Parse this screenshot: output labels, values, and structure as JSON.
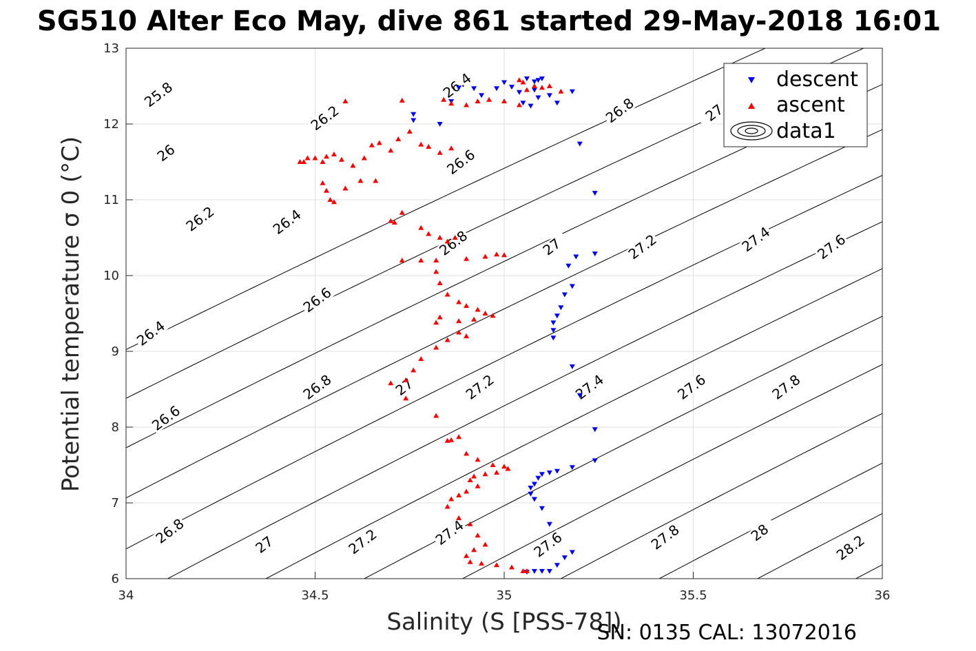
{
  "title": "SG510 Alter Eco May, dive 861 started 29-May-2018 16:01",
  "footer": "SN: 0135  CAL: 13072016",
  "chart_data": {
    "type": "scatter",
    "title": "SG510 Alter Eco May, dive 861 started 29-May-2018 16:01",
    "xlabel": "Salinity (S [PSS-78])",
    "ylabel": "Potential temperature σ 0 (°C)",
    "xlim": [
      34,
      36
    ],
    "ylim": [
      6,
      13
    ],
    "xticks": [
      "34",
      "34.5",
      "35",
      "35.5",
      "36"
    ],
    "yticks": [
      "6",
      "7",
      "8",
      "9",
      "10",
      "11",
      "12",
      "13"
    ],
    "grid": true,
    "legend_position": "top-right",
    "legend": [
      "descent",
      "ascent",
      "data1"
    ],
    "colors": {
      "descent": "#0000ff",
      "ascent": "#ff0000",
      "contour": "#000000"
    },
    "contour_levels": [
      25.8,
      26.0,
      26.2,
      26.4,
      26.6,
      26.8,
      27.0,
      27.2,
      27.4,
      27.6,
      27.8,
      28.0,
      28.2
    ],
    "contour_labels": [
      {
        "text": "25.8",
        "s": 34.09,
        "t": 12.36
      },
      {
        "text": "26",
        "s": 34.11,
        "t": 11.59
      },
      {
        "text": "26.2",
        "s": 34.2,
        "t": 10.72
      },
      {
        "text": "26.4",
        "s": 34.07,
        "t": 9.21
      },
      {
        "text": "26.6",
        "s": 34.11,
        "t": 8.09
      },
      {
        "text": "26.8",
        "s": 34.12,
        "t": 6.6
      },
      {
        "text": "27",
        "s": 34.37,
        "t": 6.42
      },
      {
        "text": "27.2",
        "s": 34.63,
        "t": 6.46
      },
      {
        "text": "27.4",
        "s": 34.86,
        "t": 6.58
      },
      {
        "text": "27.6",
        "s": 35.12,
        "t": 6.42
      },
      {
        "text": "27.8",
        "s": 35.43,
        "t": 6.52
      },
      {
        "text": "28",
        "s": 35.68,
        "t": 6.58
      },
      {
        "text": "28.2",
        "s": 35.92,
        "t": 6.38
      },
      {
        "text": "26.2",
        "s": 34.53,
        "t": 12.05
      },
      {
        "text": "26.4",
        "s": 34.43,
        "t": 10.68
      },
      {
        "text": "26.6",
        "s": 34.51,
        "t": 9.65
      },
      {
        "text": "26.8",
        "s": 34.51,
        "t": 8.5
      },
      {
        "text": "27",
        "s": 34.74,
        "t": 8.5
      },
      {
        "text": "27.2",
        "s": 34.94,
        "t": 8.5
      },
      {
        "text": "27.4",
        "s": 35.23,
        "t": 8.5
      },
      {
        "text": "27.6",
        "s": 35.5,
        "t": 8.5
      },
      {
        "text": "27.8",
        "s": 35.75,
        "t": 8.5
      },
      {
        "text": "26.4",
        "s": 34.88,
        "t": 12.48
      },
      {
        "text": "26.6",
        "s": 34.89,
        "t": 11.47
      },
      {
        "text": "26.8",
        "s": 34.87,
        "t": 10.4
      },
      {
        "text": "27",
        "s": 35.13,
        "t": 10.35
      },
      {
        "text": "27.2",
        "s": 35.37,
        "t": 10.35
      },
      {
        "text": "27.4",
        "s": 35.67,
        "t": 10.45
      },
      {
        "text": "27.6",
        "s": 35.87,
        "t": 10.35
      },
      {
        "text": "26.8",
        "s": 35.31,
        "t": 12.15
      },
      {
        "text": "27",
        "s": 35.56,
        "t": 12.12
      }
    ],
    "series": [
      {
        "name": "descent",
        "marker": "triangle-down",
        "color": "#0000ff",
        "points": [
          [
            34.76,
            12.13
          ],
          [
            34.76,
            12.05
          ],
          [
            34.83,
            12.0
          ],
          [
            34.86,
            12.3
          ],
          [
            34.88,
            12.48
          ],
          [
            34.92,
            12.47
          ],
          [
            34.94,
            12.38
          ],
          [
            34.98,
            12.47
          ],
          [
            35.0,
            12.55
          ],
          [
            35.02,
            12.49
          ],
          [
            35.04,
            12.42
          ],
          [
            35.06,
            12.6
          ],
          [
            35.08,
            12.56
          ],
          [
            35.09,
            12.58
          ],
          [
            35.1,
            12.6
          ],
          [
            35.08,
            12.45
          ],
          [
            35.05,
            12.28
          ],
          [
            35.07,
            12.24
          ],
          [
            35.09,
            12.35
          ],
          [
            35.12,
            12.38
          ],
          [
            35.14,
            12.28
          ],
          [
            35.18,
            12.43
          ],
          [
            35.2,
            11.74
          ],
          [
            35.24,
            11.09
          ],
          [
            35.24,
            10.29
          ],
          [
            35.19,
            10.25
          ],
          [
            35.17,
            10.13
          ],
          [
            35.18,
            9.86
          ],
          [
            35.16,
            9.75
          ],
          [
            35.15,
            9.58
          ],
          [
            35.14,
            9.47
          ],
          [
            35.13,
            9.38
          ],
          [
            35.13,
            9.28
          ],
          [
            35.13,
            9.18
          ],
          [
            35.18,
            8.8
          ],
          [
            35.2,
            8.42
          ],
          [
            35.24,
            7.97
          ],
          [
            35.24,
            7.56
          ],
          [
            35.18,
            7.47
          ],
          [
            35.14,
            7.42
          ],
          [
            35.12,
            7.4
          ],
          [
            35.1,
            7.38
          ],
          [
            35.09,
            7.33
          ],
          [
            35.08,
            7.25
          ],
          [
            35.07,
            7.2
          ],
          [
            35.07,
            7.12
          ],
          [
            35.08,
            7.05
          ],
          [
            35.1,
            6.93
          ],
          [
            35.12,
            6.72
          ],
          [
            35.18,
            6.35
          ],
          [
            35.16,
            6.28
          ],
          [
            35.14,
            6.18
          ],
          [
            35.12,
            6.1
          ],
          [
            35.1,
            6.1
          ],
          [
            35.08,
            6.1
          ],
          [
            35.06,
            6.09
          ]
        ]
      },
      {
        "name": "ascent",
        "marker": "triangle-up",
        "color": "#ff0000",
        "points": [
          [
            34.58,
            12.3
          ],
          [
            34.73,
            12.31
          ],
          [
            34.47,
            11.5
          ],
          [
            34.46,
            11.5
          ],
          [
            34.48,
            11.55
          ],
          [
            34.5,
            11.55
          ],
          [
            34.52,
            11.5
          ],
          [
            34.53,
            11.57
          ],
          [
            34.55,
            11.6
          ],
          [
            34.57,
            11.53
          ],
          [
            34.6,
            11.45
          ],
          [
            34.63,
            11.55
          ],
          [
            34.65,
            11.72
          ],
          [
            34.67,
            11.75
          ],
          [
            34.7,
            11.65
          ],
          [
            34.72,
            11.8
          ],
          [
            34.75,
            11.9
          ],
          [
            34.78,
            11.73
          ],
          [
            34.8,
            11.7
          ],
          [
            34.83,
            11.62
          ],
          [
            34.86,
            11.68
          ],
          [
            34.52,
            11.22
          ],
          [
            34.53,
            11.12
          ],
          [
            34.54,
            11.0
          ],
          [
            34.55,
            10.97
          ],
          [
            34.58,
            11.15
          ],
          [
            34.62,
            11.25
          ],
          [
            34.66,
            11.25
          ],
          [
            34.7,
            10.72
          ],
          [
            34.71,
            10.7
          ],
          [
            34.73,
            10.83
          ],
          [
            34.78,
            10.63
          ],
          [
            34.8,
            10.55
          ],
          [
            34.83,
            10.5
          ],
          [
            34.85,
            10.45
          ],
          [
            34.87,
            10.5
          ],
          [
            34.73,
            10.2
          ],
          [
            34.78,
            10.2
          ],
          [
            34.82,
            10.2
          ],
          [
            34.9,
            10.22
          ],
          [
            34.95,
            10.25
          ],
          [
            34.98,
            10.28
          ],
          [
            35.0,
            10.27
          ],
          [
            34.82,
            10.05
          ],
          [
            34.83,
            9.9
          ],
          [
            34.85,
            9.75
          ],
          [
            34.88,
            9.65
          ],
          [
            34.9,
            9.6
          ],
          [
            34.93,
            9.55
          ],
          [
            34.95,
            9.5
          ],
          [
            34.97,
            9.47
          ],
          [
            34.92,
            9.42
          ],
          [
            34.88,
            9.4
          ],
          [
            34.83,
            9.45
          ],
          [
            34.82,
            9.38
          ],
          [
            34.85,
            9.15
          ],
          [
            34.88,
            9.25
          ],
          [
            34.9,
            9.2
          ],
          [
            34.82,
            9.05
          ],
          [
            34.78,
            8.9
          ],
          [
            34.76,
            8.75
          ],
          [
            34.7,
            8.58
          ],
          [
            34.74,
            8.62
          ],
          [
            34.74,
            8.38
          ],
          [
            34.82,
            8.15
          ],
          [
            34.85,
            7.82
          ],
          [
            34.86,
            7.83
          ],
          [
            34.88,
            7.87
          ],
          [
            34.9,
            7.65
          ],
          [
            34.93,
            7.57
          ],
          [
            34.97,
            7.5
          ],
          [
            35.0,
            7.48
          ],
          [
            35.01,
            7.45
          ],
          [
            34.98,
            7.4
          ],
          [
            34.95,
            7.38
          ],
          [
            34.92,
            7.35
          ],
          [
            34.91,
            7.3
          ],
          [
            34.93,
            7.22
          ],
          [
            34.9,
            7.15
          ],
          [
            34.88,
            7.1
          ],
          [
            34.86,
            7.05
          ],
          [
            34.85,
            6.95
          ],
          [
            34.88,
            6.8
          ],
          [
            34.91,
            6.72
          ],
          [
            34.93,
            6.57
          ],
          [
            34.95,
            6.45
          ],
          [
            34.92,
            6.38
          ],
          [
            34.9,
            6.3
          ],
          [
            34.91,
            6.22
          ],
          [
            34.94,
            6.2
          ],
          [
            34.98,
            6.18
          ],
          [
            35.02,
            6.15
          ],
          [
            35.05,
            6.1
          ],
          [
            35.06,
            6.1
          ],
          [
            34.84,
            12.32
          ],
          [
            34.86,
            12.27
          ],
          [
            34.9,
            12.25
          ],
          [
            34.93,
            12.3
          ],
          [
            34.96,
            12.32
          ],
          [
            35.0,
            12.3
          ],
          [
            35.04,
            12.25
          ],
          [
            35.06,
            12.45
          ],
          [
            35.08,
            12.5
          ],
          [
            35.1,
            12.48
          ],
          [
            35.12,
            12.5
          ],
          [
            35.15,
            12.43
          ],
          [
            35.04,
            12.58
          ],
          [
            35.05,
            12.55
          ]
        ]
      }
    ]
  }
}
